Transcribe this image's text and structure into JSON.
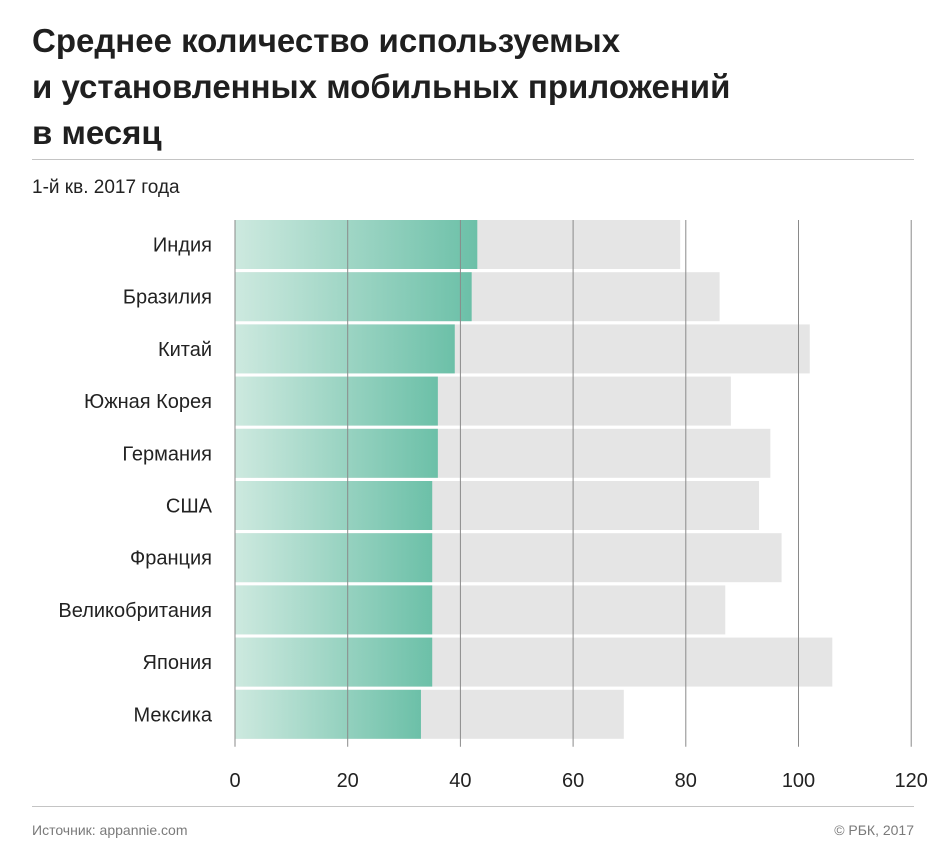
{
  "header": {
    "title_lines": [
      "Среднее количество используемых",
      "и установленных мобильных приложений",
      "в месяц"
    ],
    "subtitle": "1-й кв. 2017 года"
  },
  "footer": {
    "source": "Источник: appannie.com",
    "copyright": "© РБК, 2017"
  },
  "colors": {
    "used_gradient_start": "#cde9df",
    "used_gradient_end": "#6cc0a8",
    "installed": "#e5e5e5",
    "gridline": "#8a8a8a"
  },
  "chart_data": {
    "type": "bar",
    "orientation": "horizontal",
    "stacking": "overlay",
    "categories": [
      "Индия",
      "Бразилия",
      "Китай",
      "Южная Корея",
      "Германия",
      "США",
      "Франция",
      "Великобритания",
      "Япония",
      "Мексика"
    ],
    "series": [
      {
        "key": "installed",
        "values": [
          79,
          86,
          102,
          88,
          95,
          93,
          97,
          87,
          106,
          69
        ]
      },
      {
        "key": "used",
        "values": [
          43,
          42,
          39,
          36,
          36,
          35,
          35,
          35,
          35,
          33
        ]
      }
    ],
    "xlim": [
      0,
      120
    ],
    "xticks": [
      0,
      20,
      40,
      60,
      80,
      100,
      120
    ],
    "grid": true,
    "legend": "none"
  }
}
